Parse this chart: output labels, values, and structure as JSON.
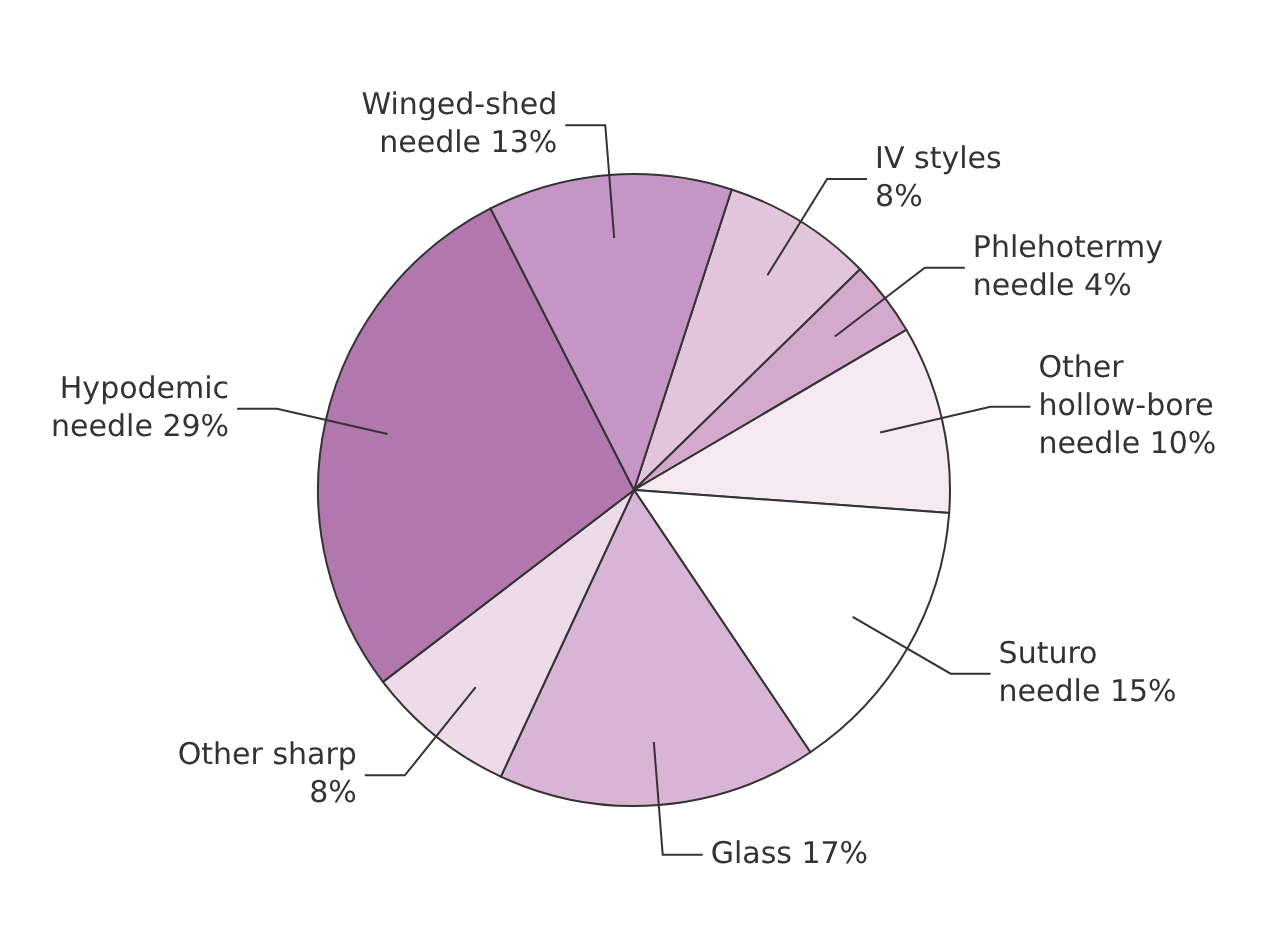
{
  "chart_data": {
    "type": "pie",
    "categories": [
      "IV styles",
      "Phlehotermy needle",
      "Other hollow-bore needle",
      "Suturo needle",
      "Glass",
      "Other sharp",
      "Hypodemic needle",
      "Winged-shed needle"
    ],
    "values": [
      8,
      4,
      10,
      15,
      17,
      8,
      29,
      13
    ],
    "value_labels": [
      "8%",
      "4%",
      "10%",
      "15%",
      "17%",
      "8%",
      "29%",
      "13%"
    ],
    "colors": [
      "#e2c5dd",
      "#d3a9cc",
      "#f6e9f1",
      "#ffffff",
      "#d8b5d4",
      "#eedbe9",
      "#b277ac",
      "#c596c5"
    ],
    "legend": false
  }
}
